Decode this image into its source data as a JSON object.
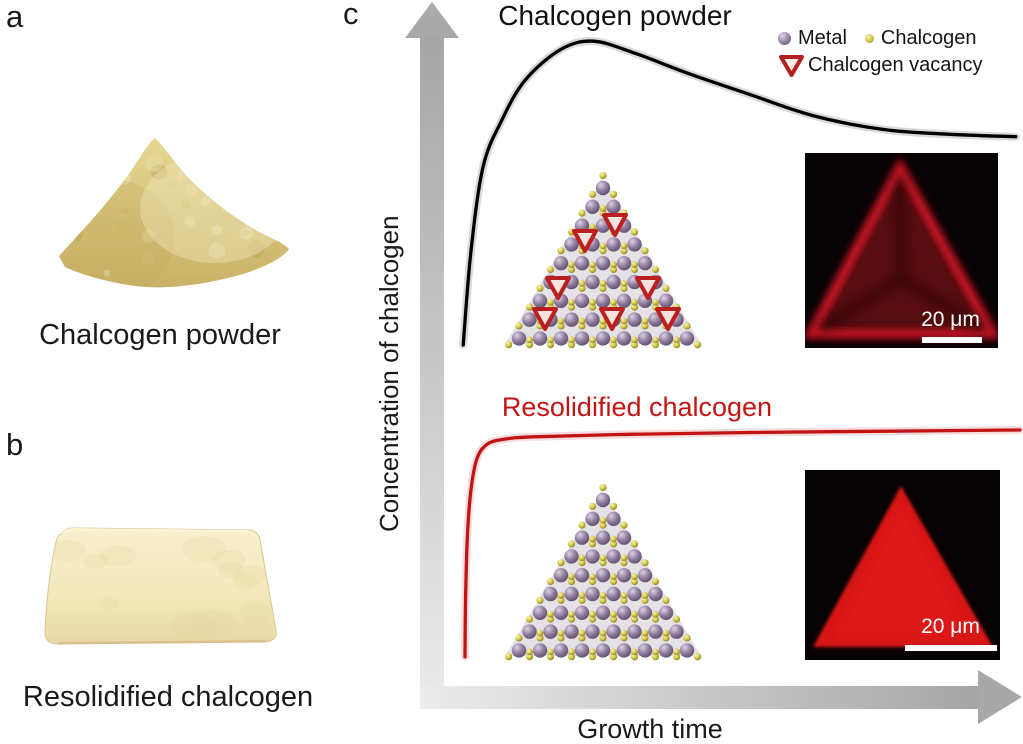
{
  "panels": {
    "a": {
      "letter": "a",
      "caption": "Chalcogen powder"
    },
    "b": {
      "letter": "b",
      "caption": "Resolidified chalcogen"
    },
    "c": {
      "letter": "c",
      "title": "Chalcogen powder",
      "red_curve_label": "Resolidified chalcogen",
      "y_axis_label": "Concentration of chalcogen",
      "x_axis_label": "Growth time",
      "legend": {
        "metal": "Metal",
        "chalcogen": "Chalcogen",
        "vacancy": "Chalcogen vacancy"
      },
      "images": {
        "top": {
          "scale_label": "20 μm",
          "description": "PL map: triangle with bright edges and dark defective interior"
        },
        "bottom": {
          "scale_label": "20 μm",
          "description": "PL map: uniformly bright red triangle"
        }
      }
    }
  },
  "chart_data": {
    "type": "line",
    "title": "Chalcogen supply during growth (schematic, no numeric ticks)",
    "xlabel": "Growth time",
    "ylabel": "Concentration of chalcogen",
    "axes_numeric": false,
    "grid": false,
    "legend_position": "top-right",
    "legend_entries": [
      "Metal",
      "Chalcogen",
      "Chalcogen vacancy"
    ],
    "annotations": [
      "Chalcogen powder (black curve, peaks then decays)",
      "Resolidified chalcogen (red curve, fast rise then constant plateau)"
    ],
    "series": [
      {
        "name": "Chalcogen powder",
        "color": "#000000",
        "points": [
          [
            0.072,
            0.508
          ],
          [
            0.085,
            0.66
          ],
          [
            0.105,
            0.795
          ],
          [
            0.135,
            0.868
          ],
          [
            0.175,
            0.935
          ],
          [
            0.235,
            0.985
          ],
          [
            0.29,
            0.998
          ],
          [
            0.36,
            0.978
          ],
          [
            0.45,
            0.945
          ],
          [
            0.55,
            0.912
          ],
          [
            0.655,
            0.878
          ],
          [
            0.77,
            0.856
          ],
          [
            0.88,
            0.848
          ],
          [
            0.993,
            0.844
          ]
        ]
      },
      {
        "name": "Resolidified chalcogen",
        "color": "#c21414",
        "points": [
          [
            0.075,
            0.005
          ],
          [
            0.076,
            0.1
          ],
          [
            0.079,
            0.2
          ],
          [
            0.085,
            0.275
          ],
          [
            0.095,
            0.325
          ],
          [
            0.112,
            0.348
          ],
          [
            0.14,
            0.356
          ],
          [
            0.19,
            0.36
          ],
          [
            0.35,
            0.364
          ],
          [
            0.55,
            0.367
          ],
          [
            0.78,
            0.369
          ],
          [
            1.0,
            0.371
          ]
        ]
      }
    ]
  },
  "illustrations": {
    "lattice": {
      "rows": 9,
      "background": "#e4e2e6",
      "metal_colors": [
        "#ddd2e4",
        "#907c9e",
        "#5e4e6d"
      ],
      "chalcogen_colors": [
        "#faf5bb",
        "#d2c645",
        "#857a1e"
      ],
      "vacancy_stroke": "#bc1f1f",
      "vacancy_fill": "#f7e3dd",
      "top_vacancies": [
        [
          112,
          52
        ],
        [
          82,
          68
        ],
        [
          55,
          115
        ],
        [
          145,
          115
        ],
        [
          42,
          146
        ],
        [
          109,
          146
        ],
        [
          165,
          146
        ]
      ],
      "bottom_vacancies": []
    },
    "fluorescence": {
      "background": "#070203",
      "edge_red": "#d81726",
      "interior_dark_red": "#4a080d",
      "bright_red": "#d81418"
    },
    "powder_colors": [
      "#e6d793",
      "#c9b266",
      "#e8dca4",
      "#cdb76a",
      "#bfa558",
      "#efe5b8",
      "#d6c47f"
    ],
    "block_colors": [
      "#f8f0cf",
      "#f3e8bd",
      "#e9d9a3",
      "#e7d6a2",
      "#fdf7dd"
    ]
  },
  "colors": {
    "curve_black": "#000000",
    "curve_red": "#c21414",
    "red_text": "#c41414",
    "axis_gray_dark": "#a6a6a6",
    "axis_gray_light": "#ececec",
    "scale_bar": "#ffffff"
  }
}
